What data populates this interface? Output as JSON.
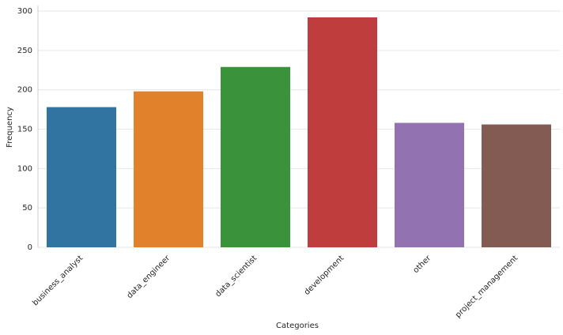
{
  "chart_data": {
    "type": "bar",
    "xlabel": "Categories",
    "ylabel": "Frequency",
    "categories": [
      "business_analyst",
      "data_engineer",
      "data_scientist",
      "development",
      "other",
      "project_management"
    ],
    "values": [
      178,
      198,
      229,
      292,
      158,
      156
    ],
    "colors": [
      "#3274a1",
      "#e1812c",
      "#3a923a",
      "#c03d3e",
      "#9372b2",
      "#845b53"
    ],
    "ylim": [
      0,
      307
    ],
    "yticks": [
      0,
      50,
      100,
      150,
      200,
      250,
      300
    ],
    "grid": true
  }
}
